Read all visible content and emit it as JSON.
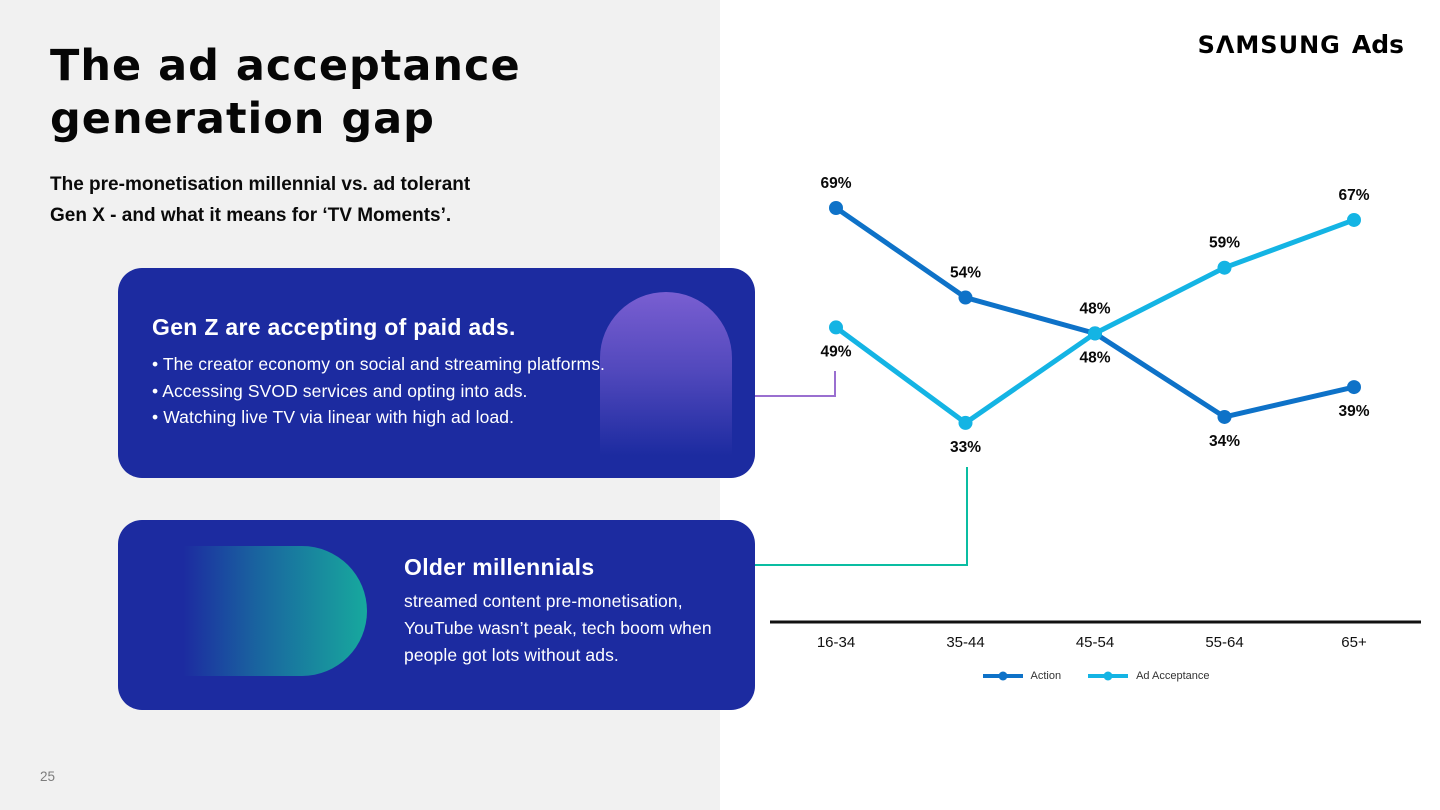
{
  "slide": {
    "page_number": "25",
    "logo": {
      "samsung": "SΛMSUNG",
      "ads": "Ads"
    },
    "title_line1": "The ad acceptance",
    "title_line2": "generation gap",
    "subtitle_line1": "The pre-monetisation millennial vs. ad tolerant",
    "subtitle_line2": "Gen X - and what it means for ‘TV Moments’."
  },
  "callout_genz": {
    "heading": "Gen Z are accepting of paid ads.",
    "bullets": [
      "• The creator economy on social and streaming platforms.",
      "• Accessing SVOD services and opting into ads.",
      "• Watching live TV via linear with high ad load."
    ],
    "bg_color": "#1C2BA0",
    "accent_color": "#7E61D4"
  },
  "callout_millennials": {
    "heading": "Older millennials",
    "body_lines": [
      "streamed content pre-monetisation,",
      "YouTube wasn’t peak, tech boom when",
      "people got lots without ads."
    ],
    "bg_color": "#1C2BA0",
    "accent_color": "#17A99E"
  },
  "connectors": {
    "genz_color": "#9A6FD0",
    "millennials_color": "#0ABDA2"
  },
  "chart_data": {
    "type": "line",
    "categories": [
      "16-34",
      "35-44",
      "45-54",
      "55-64",
      "65+"
    ],
    "series": [
      {
        "name": "Action",
        "color": "#0E72C8",
        "values": [
          69,
          54,
          48,
          34,
          39
        ],
        "label_pos": [
          "above",
          "above",
          "below",
          "below",
          "below"
        ]
      },
      {
        "name": "Ad Acceptance",
        "color": "#14B4E4",
        "values": [
          49,
          33,
          48,
          59,
          67
        ],
        "label_pos": [
          "below",
          "below",
          "above",
          "above",
          "above"
        ]
      }
    ],
    "value_suffix": "%",
    "title": "",
    "xlabel": "",
    "ylabel": "",
    "y_axis_visible": false,
    "grid": false,
    "legend_position": "bottom",
    "baseline_color": "#111111"
  }
}
